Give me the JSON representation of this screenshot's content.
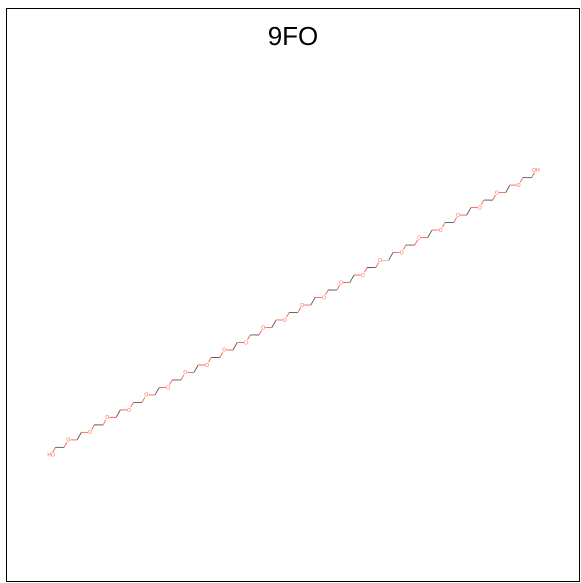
{
  "title": "9FO",
  "molecule": {
    "terminal_labels": [
      "HO",
      "OH"
    ],
    "oxygen_label": "O",
    "ether_oxygen_count": 24,
    "colors": {
      "bond": "#555555",
      "oxygen": "#ff5a4a",
      "frame": "#000000",
      "background": "#ffffff"
    }
  }
}
